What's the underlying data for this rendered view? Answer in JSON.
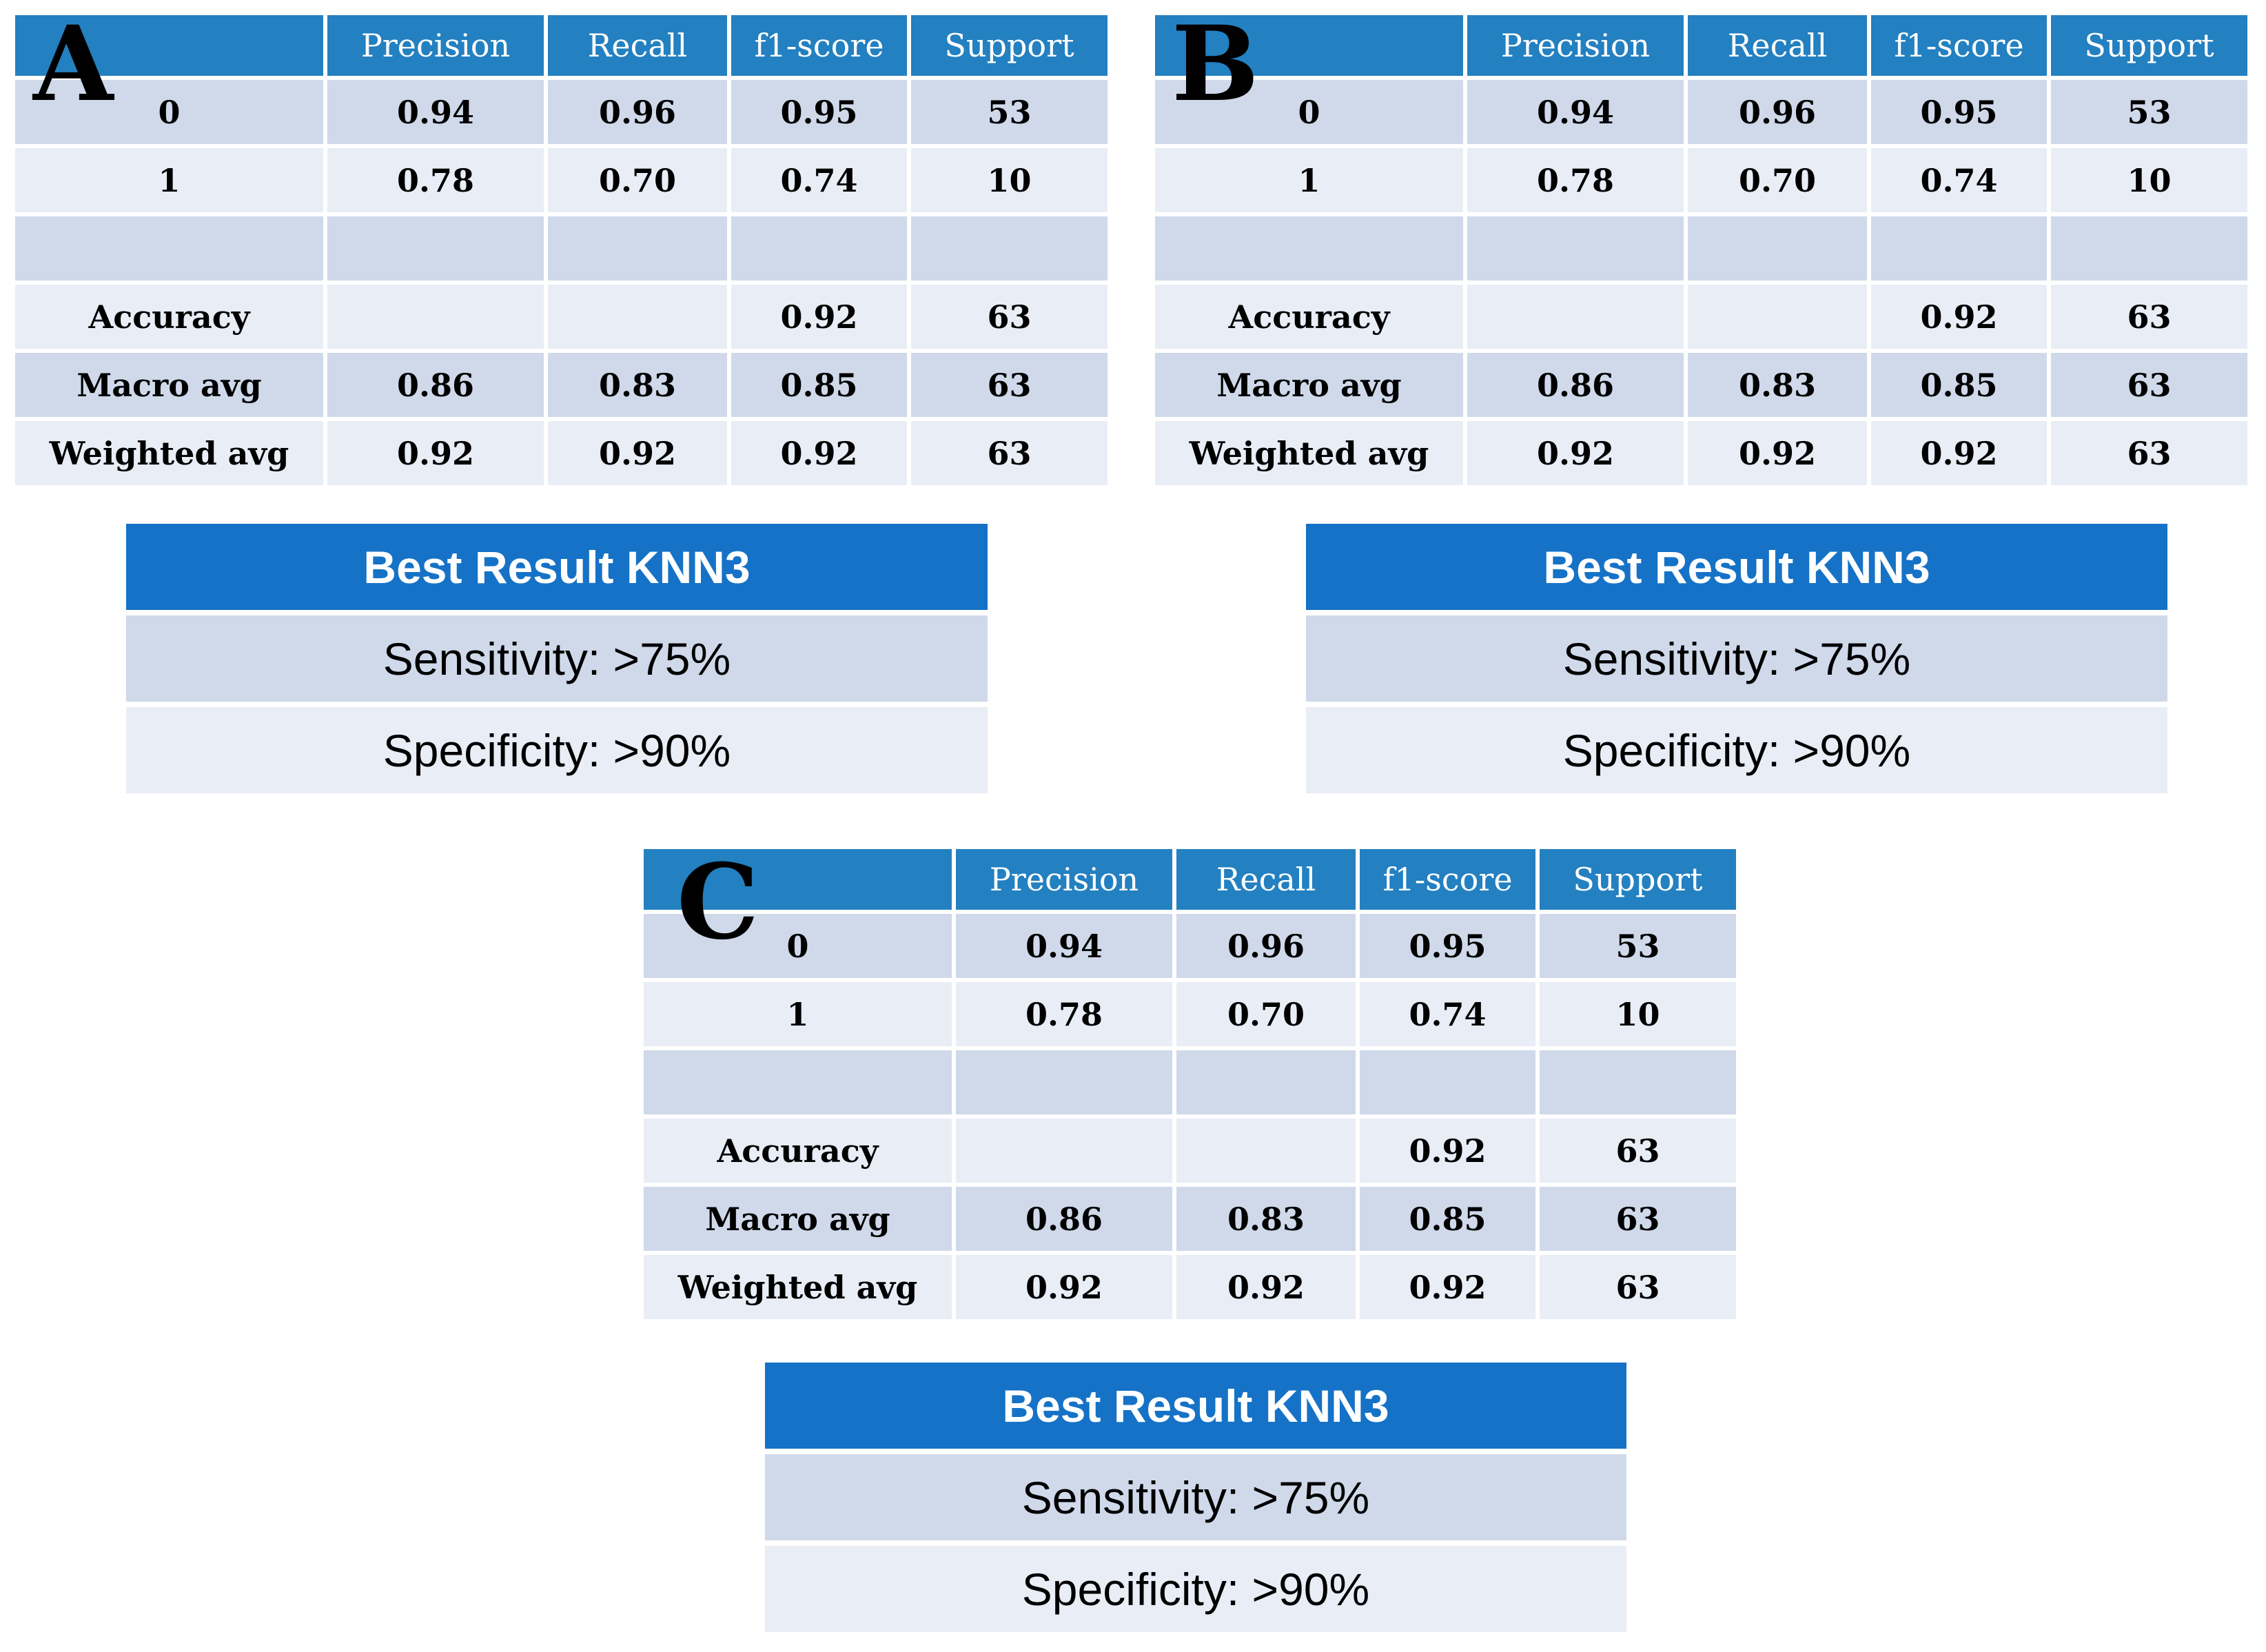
{
  "headers": [
    "",
    "Precision",
    "Recall",
    "f1-score",
    "Support"
  ],
  "panels": [
    {
      "letter": "A",
      "rows": [
        [
          "0",
          "0.94",
          "0.96",
          "0.95",
          "53"
        ],
        [
          "1",
          "0.78",
          "0.70",
          "0.74",
          "10"
        ],
        [
          "",
          "",
          "",
          "",
          ""
        ],
        [
          "Accuracy",
          "",
          "",
          "0.92",
          "63"
        ],
        [
          "Macro avg",
          "0.86",
          "0.83",
          "0.85",
          "63"
        ],
        [
          "Weighted avg",
          "0.92",
          "0.92",
          "0.92",
          "63"
        ]
      ],
      "summary": {
        "title": "Best Result KNN3",
        "sensitivity": "Sensitivity: >75%",
        "specificity": "Specificity: >90%"
      }
    },
    {
      "letter": "B",
      "rows": [
        [
          "0",
          "0.94",
          "0.96",
          "0.95",
          "53"
        ],
        [
          "1",
          "0.78",
          "0.70",
          "0.74",
          "10"
        ],
        [
          "",
          "",
          "",
          "",
          ""
        ],
        [
          "Accuracy",
          "",
          "",
          "0.92",
          "63"
        ],
        [
          "Macro avg",
          "0.86",
          "0.83",
          "0.85",
          "63"
        ],
        [
          "Weighted avg",
          "0.92",
          "0.92",
          "0.92",
          "63"
        ]
      ],
      "summary": {
        "title": "Best Result KNN3",
        "sensitivity": "Sensitivity: >75%",
        "specificity": "Specificity: >90%"
      }
    },
    {
      "letter": "C",
      "rows": [
        [
          "0",
          "0.94",
          "0.96",
          "0.95",
          "53"
        ],
        [
          "1",
          "0.78",
          "0.70",
          "0.74",
          "10"
        ],
        [
          "",
          "",
          "",
          "",
          ""
        ],
        [
          "Accuracy",
          "",
          "",
          "0.92",
          "63"
        ],
        [
          "Macro avg",
          "0.86",
          "0.83",
          "0.85",
          "63"
        ],
        [
          "Weighted avg",
          "0.92",
          "0.92",
          "0.92",
          "63"
        ]
      ],
      "summary": {
        "title": "Best Result KNN3",
        "sensitivity": "Sensitivity: >75%",
        "specificity": "Specificity: >90%"
      }
    }
  ]
}
